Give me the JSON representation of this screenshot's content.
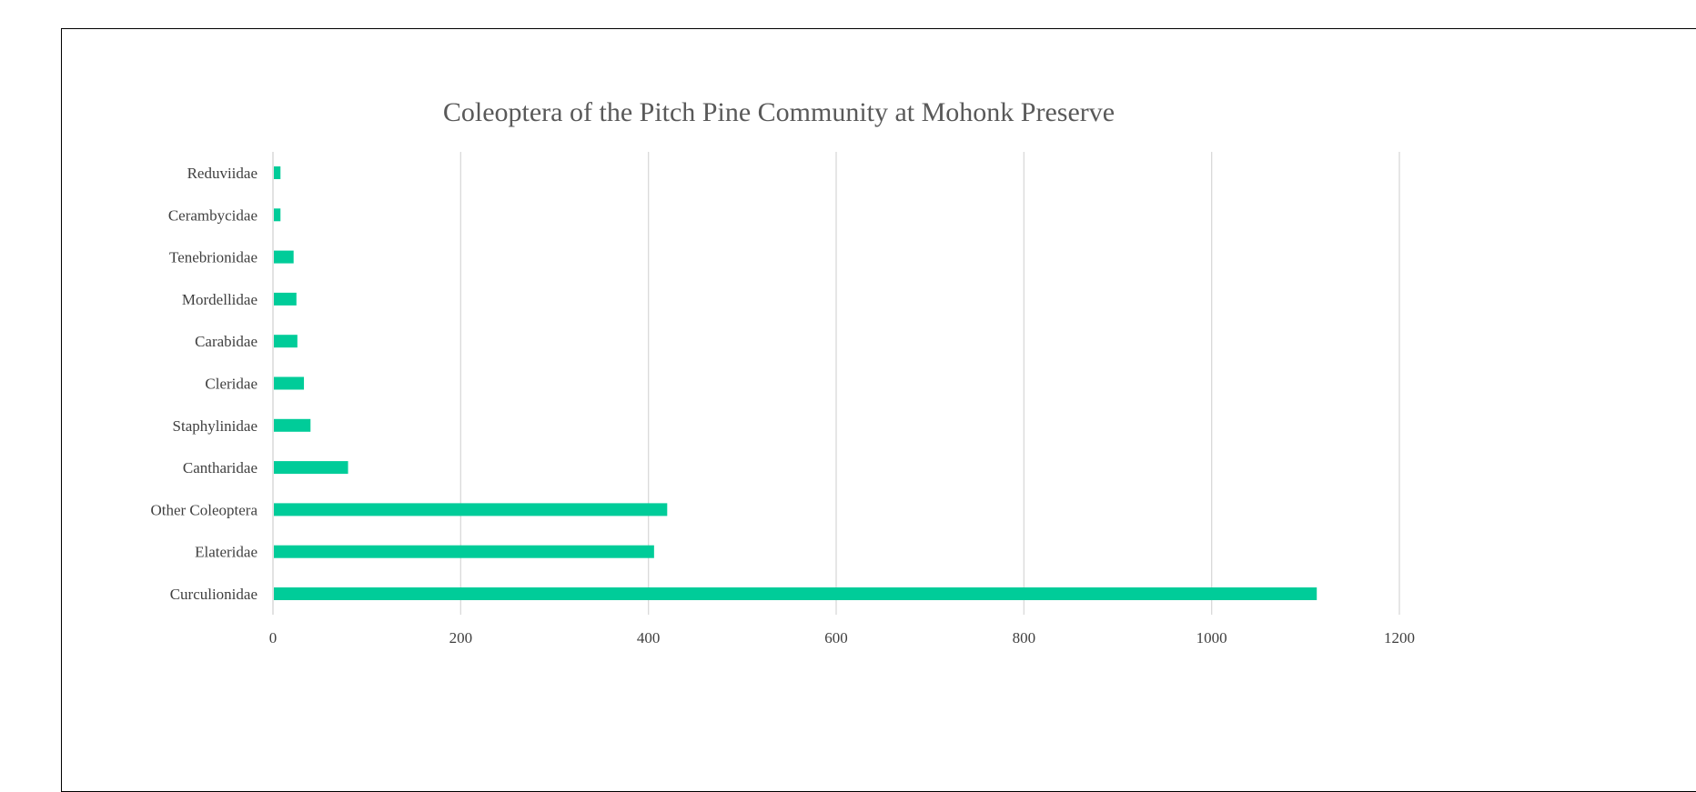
{
  "chart_data": {
    "type": "bar",
    "orientation": "horizontal",
    "title": "Coleoptera of the Pitch Pine Community at Mohonk Preserve",
    "xlabel": "",
    "ylabel": "",
    "categories": [
      "Reduviidae",
      "Cerambycidae",
      "Tenebrionidae",
      "Mordellidae",
      "Carabidae",
      "Cleridae",
      "Staphylinidae",
      "Cantharidae",
      "Other Coleoptera",
      "Elateridae",
      "Curculionidae"
    ],
    "values": [
      8,
      8,
      22,
      25,
      26,
      33,
      40,
      80,
      420,
      406,
      1112
    ],
    "xlim": [
      0,
      1200
    ],
    "x_ticks": [
      "0",
      "200",
      "400",
      "600",
      "800",
      "1000",
      "1200"
    ],
    "grid": "vertical",
    "legend": "none",
    "bar_color": "#00CC99",
    "grid_color": "#D9D9D9"
  }
}
